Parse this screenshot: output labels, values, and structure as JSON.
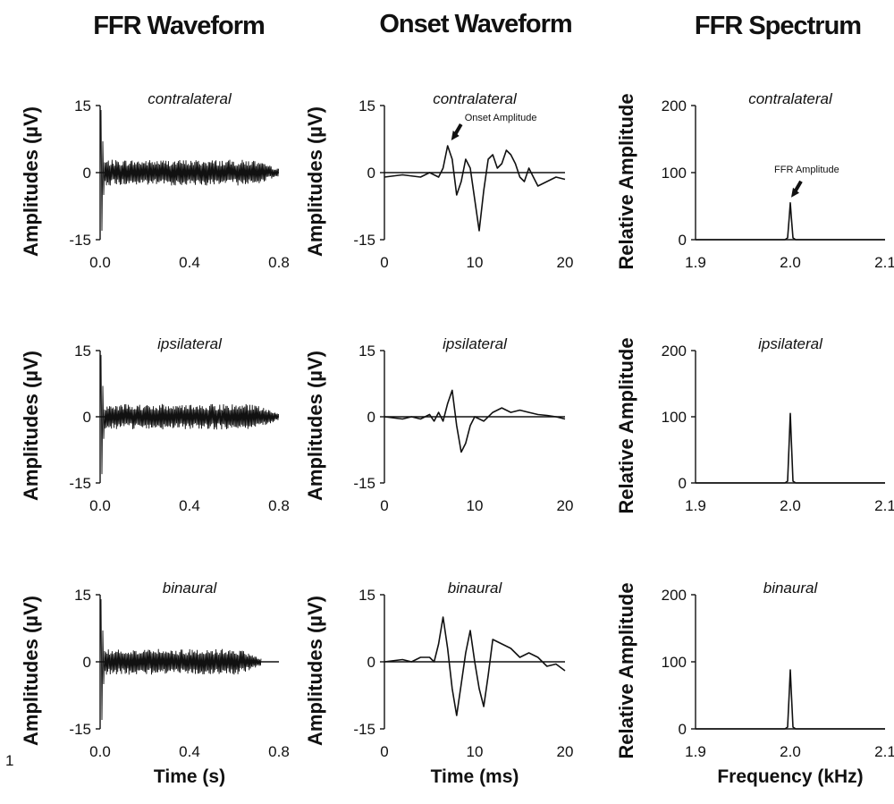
{
  "column_titles": [
    "FFR Waveform",
    "Onset Waveform",
    "FFR Spectrum"
  ],
  "stray_label": "1",
  "chart_data": [
    {
      "type": "line",
      "column": "FFR Waveform",
      "title": "contralateral",
      "xlabel": "",
      "ylabel": "Amplitudes (µV)",
      "xlim": [
        0,
        0.8
      ],
      "ylim": [
        -15,
        15
      ],
      "xticks": [
        "0.0",
        "0.4",
        "0.8"
      ],
      "yticks": [
        "-15",
        "0",
        "15"
      ],
      "signal": "ffr",
      "decay_end": 0.8
    },
    {
      "type": "line",
      "column": "Onset Waveform",
      "title": "contralateral",
      "xlabel": "",
      "ylabel": "Amplitudes (µV)",
      "xlim": [
        0,
        20
      ],
      "ylim": [
        -15,
        15
      ],
      "xticks": [
        "0",
        "10",
        "20"
      ],
      "yticks": [
        "-15",
        "0",
        "15"
      ],
      "signal": "onset",
      "x": [
        0,
        2,
        4,
        5,
        6,
        6.5,
        7,
        7.5,
        8,
        8.5,
        9,
        9.5,
        10,
        10.5,
        11,
        11.5,
        12,
        12.5,
        13,
        13.5,
        14,
        14.5,
        15,
        15.5,
        16,
        16.5,
        17,
        18,
        19,
        20
      ],
      "y": [
        -1,
        -0.5,
        -1,
        0,
        -1,
        1,
        6,
        3,
        -5,
        -2,
        3,
        1,
        -6,
        -13,
        -4,
        3,
        4,
        1,
        2,
        5,
        4,
        2,
        -1,
        -2,
        1,
        -1,
        -3,
        -2,
        -1,
        -1.5
      ],
      "annotation": "Onset Amplitude",
      "annotation_x": 7.3,
      "annotation_y": 6
    },
    {
      "type": "line",
      "column": "FFR Spectrum",
      "title": "contralateral",
      "xlabel": "",
      "ylabel": "Relative Amplitude",
      "xlim": [
        1.9,
        2.1
      ],
      "ylim": [
        0,
        200
      ],
      "xticks": [
        "1.9",
        "2.0",
        "2.1"
      ],
      "yticks": [
        "0",
        "100",
        "200"
      ],
      "signal": "spectrum",
      "peak_x": 2.0,
      "peak_y": 55,
      "annotation": "FFR Amplitude",
      "annotation_x": 2.0,
      "annotation_y": 55
    },
    {
      "type": "line",
      "column": "FFR Waveform",
      "title": "ipsilateral",
      "xlabel": "",
      "ylabel": "Amplitudes (µV)",
      "xlim": [
        0,
        0.8
      ],
      "ylim": [
        -15,
        15
      ],
      "xticks": [
        "0.0",
        "0.4",
        "0.8"
      ],
      "yticks": [
        "-15",
        "0",
        "15"
      ],
      "signal": "ffr",
      "decay_end": 0.8
    },
    {
      "type": "line",
      "column": "Onset Waveform",
      "title": "ipsilateral",
      "xlabel": "",
      "ylabel": "Amplitudes (µV)",
      "xlim": [
        0,
        20
      ],
      "ylim": [
        -15,
        15
      ],
      "xticks": [
        "0",
        "10",
        "20"
      ],
      "yticks": [
        "-15",
        "0",
        "15"
      ],
      "signal": "onset",
      "x": [
        0,
        2,
        3,
        4,
        5,
        5.5,
        6,
        6.5,
        7,
        7.5,
        8,
        8.5,
        9,
        9.5,
        10,
        11,
        12,
        13,
        14,
        15,
        16,
        17,
        18,
        19,
        20
      ],
      "y": [
        0,
        -0.5,
        0,
        -0.5,
        0.5,
        -1,
        1,
        -1,
        3,
        6,
        -2,
        -8,
        -6,
        -2,
        0,
        -1,
        1,
        2,
        1,
        1.5,
        1,
        0.5,
        0.3,
        0,
        -0.5
      ]
    },
    {
      "type": "line",
      "column": "FFR Spectrum",
      "title": "ipsilateral",
      "xlabel": "",
      "ylabel": "Relative Amplitude",
      "xlim": [
        1.9,
        2.1
      ],
      "ylim": [
        0,
        200
      ],
      "xticks": [
        "1.9",
        "2.0",
        "2.1"
      ],
      "yticks": [
        "0",
        "100",
        "200"
      ],
      "signal": "spectrum",
      "peak_x": 2.0,
      "peak_y": 105
    },
    {
      "type": "line",
      "column": "FFR Waveform",
      "title": "binaural",
      "xlabel": "Time (s)",
      "ylabel": "Amplitudes (µV)",
      "xlim": [
        0,
        0.8
      ],
      "ylim": [
        -15,
        15
      ],
      "xticks": [
        "0.0",
        "0.4",
        "0.8"
      ],
      "yticks": [
        "-15",
        "0",
        "15"
      ],
      "signal": "ffr",
      "decay_end": 0.72
    },
    {
      "type": "line",
      "column": "Onset Waveform",
      "title": "binaural",
      "xlabel": "Time (ms)",
      "ylabel": "Amplitudes (µV)",
      "xlim": [
        0,
        20
      ],
      "ylim": [
        -15,
        15
      ],
      "xticks": [
        "0",
        "10",
        "20"
      ],
      "yticks": [
        "-15",
        "0",
        "15"
      ],
      "signal": "onset",
      "x": [
        0,
        2,
        3,
        4,
        5,
        5.5,
        6,
        6.5,
        7,
        7.5,
        8,
        8.5,
        9,
        9.5,
        10,
        10.5,
        11,
        11.5,
        12,
        13,
        14,
        15,
        16,
        17,
        18,
        19,
        20
      ],
      "y": [
        0,
        0.5,
        0,
        1,
        1,
        0,
        4,
        10,
        3,
        -6,
        -12,
        -5,
        2,
        7,
        0,
        -6,
        -10,
        -3,
        5,
        4,
        3,
        1,
        2,
        1,
        -1,
        -0.5,
        -2
      ]
    },
    {
      "type": "line",
      "column": "FFR Spectrum",
      "title": "binaural",
      "xlabel": "Frequency (kHz)",
      "ylabel": "Relative Amplitude",
      "xlim": [
        1.9,
        2.1
      ],
      "ylim": [
        0,
        200
      ],
      "xticks": [
        "1.9",
        "2.0",
        "2.1"
      ],
      "yticks": [
        "0",
        "100",
        "200"
      ],
      "signal": "spectrum",
      "peak_x": 2.0,
      "peak_y": 88
    }
  ]
}
